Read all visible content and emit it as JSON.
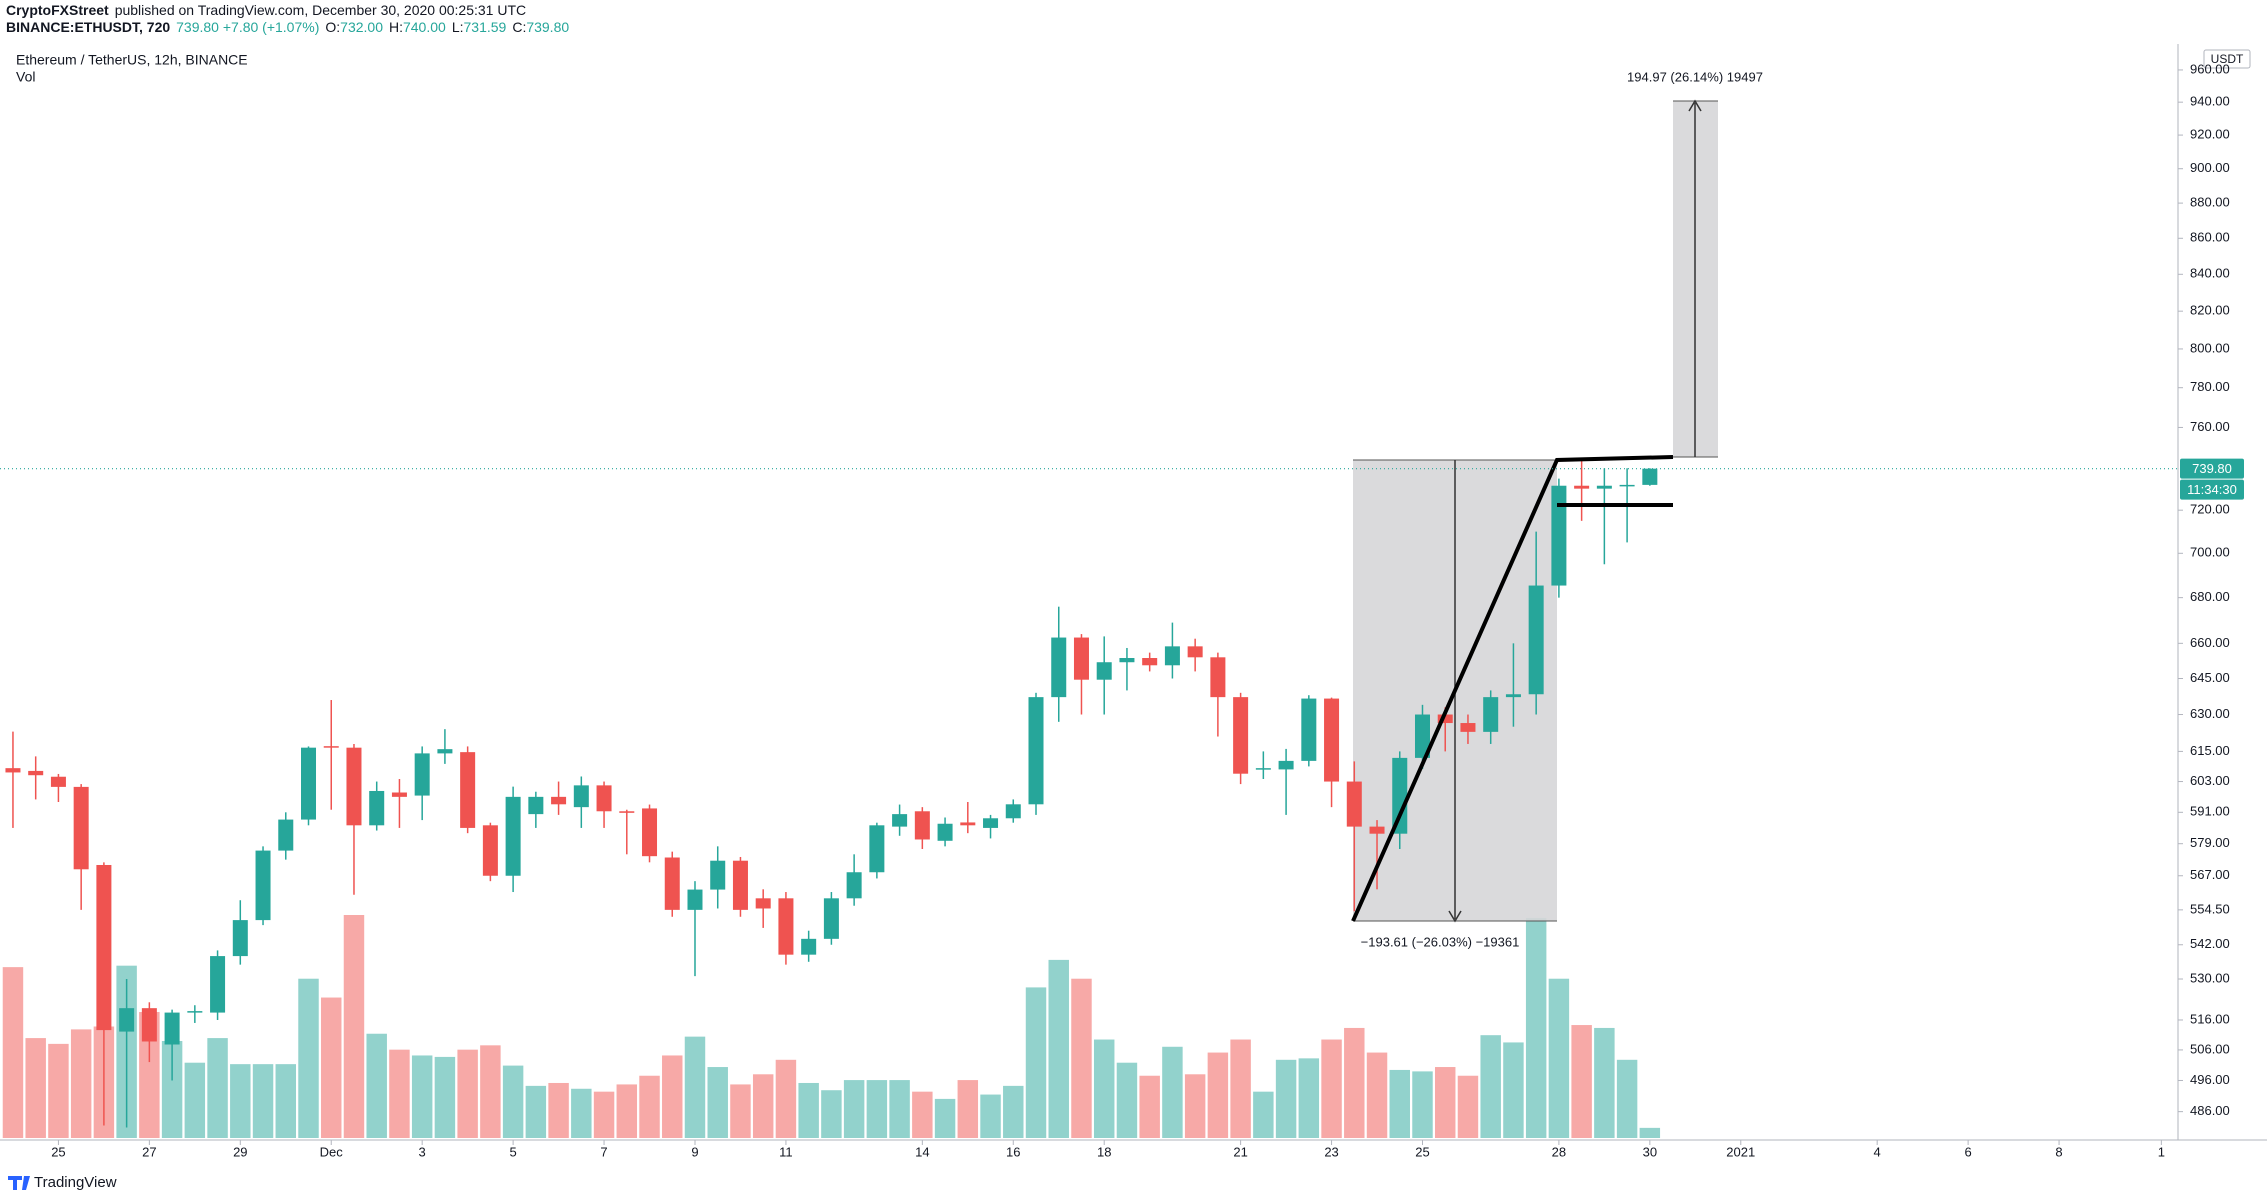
{
  "header": {
    "author": "CryptoFXStreet",
    "published": "published on TradingView.com, December 30, 2020 00:25:31 UTC",
    "symbol": "BINANCE:ETHUSDT, 720",
    "change": "739.80 +7.80 (+1.07%)",
    "ohlc": [
      {
        "key": "O:",
        "value": "732.00"
      },
      {
        "key": "H:",
        "value": "740.00"
      },
      {
        "key": "L:",
        "value": "731.59"
      },
      {
        "key": "C:",
        "value": "739.80"
      }
    ]
  },
  "chart_data": {
    "type": "candlestick",
    "title": "Ethereum / TetherUS, 12h, BINANCE",
    "volume_label": "Vol",
    "y_unit": "USDT",
    "up_color": "#26a69a",
    "down_color": "#ef5350",
    "volume_up_color": "#92d2cc",
    "volume_down_color": "#f7a9a7",
    "log_scale": true,
    "grid": false,
    "open": [
      608.3,
      607.2,
      604.9,
      600.9,
      571.0,
      512.1,
      520.0,
      507.8,
      518.5,
      518.5,
      538.0,
      550.8,
      576.4,
      588.2,
      617.1,
      616.5,
      586.0,
      598.7,
      597.5,
      614.2,
      614.7,
      586.0,
      567.0,
      590.3,
      597.0,
      593.0,
      601.5,
      591.4,
      592.5,
      573.8,
      554.5,
      561.9,
      572.6,
      558.7,
      558.7,
      538.5,
      544.1,
      558.7,
      568.3,
      585.5,
      591.4,
      580.1,
      587.1,
      585.0,
      588.7,
      594.1,
      637.2,
      662.5,
      644.5,
      651.9,
      653.7,
      650.6,
      658.7,
      654.0,
      637.2,
      607.8,
      607.8,
      611.2,
      636.6,
      603.0,
      585.5,
      582.8,
      612.4,
      630.0,
      626.5,
      622.9,
      637.2,
      638.4,
      685.4,
      731.6,
      730.2,
      731.6,
      732.0
    ],
    "high": [
      623,
      613,
      606,
      602,
      572,
      530,
      522,
      519.5,
      521,
      540,
      558,
      578,
      591,
      617,
      636,
      618,
      603,
      604,
      617,
      624,
      617,
      587,
      601,
      599,
      603,
      605,
      603,
      592,
      594,
      576,
      565,
      578,
      574,
      562,
      561,
      547,
      561,
      575,
      587,
      594,
      593,
      589,
      595,
      590,
      596,
      639,
      676,
      664,
      663,
      658,
      656,
      669,
      662,
      656,
      639,
      615,
      616,
      638,
      637,
      611,
      588,
      615,
      634,
      633,
      630,
      640,
      660,
      710,
      735,
      744,
      740,
      740,
      740.0
    ],
    "low": [
      585,
      596,
      595,
      554.5,
      481.6,
      481,
      502,
      496,
      515,
      516,
      535,
      549,
      573,
      586,
      592,
      560,
      584,
      585,
      588,
      610,
      583,
      565,
      561,
      585,
      590,
      585,
      585,
      575,
      572,
      552,
      531,
      555,
      552,
      548,
      535,
      536,
      542,
      556,
      566,
      582,
      577,
      578,
      583,
      581,
      587,
      590,
      627,
      630,
      630,
      640,
      648,
      645,
      648,
      621,
      602,
      604,
      590,
      609,
      593,
      554,
      562,
      577,
      608,
      615,
      618,
      618,
      625,
      630,
      680,
      715,
      695,
      705,
      731.59
    ],
    "close": [
      606.6,
      605.5,
      600.9,
      569.4,
      512.6,
      520.0,
      508.8,
      518.5,
      519.0,
      538.0,
      550.8,
      576.4,
      588.2,
      616.5,
      616.5,
      586.0,
      599.3,
      597.0,
      614.2,
      615.9,
      585.0,
      567.0,
      597.0,
      597.0,
      594.1,
      601.5,
      591.4,
      590.8,
      574.3,
      554.5,
      561.9,
      572.6,
      554.5,
      555.0,
      538.5,
      544.1,
      558.7,
      568.3,
      586.0,
      590.3,
      580.6,
      586.6,
      586.0,
      588.7,
      594.1,
      637.2,
      662.5,
      644.5,
      651.9,
      653.7,
      650.6,
      658.7,
      654.0,
      637.2,
      606.1,
      608.3,
      611.2,
      636.6,
      603.0,
      585.5,
      582.8,
      612.4,
      630.0,
      626.5,
      622.9,
      637.2,
      638.4,
      685.4,
      731.6,
      730.2,
      731.6,
      732.0,
      739.8
    ],
    "volume": [
      118,
      69,
      65,
      75,
      77,
      119,
      87,
      67,
      52,
      69,
      51,
      51,
      51,
      110,
      97,
      154,
      72,
      61,
      57,
      56,
      61,
      64,
      50,
      36,
      38,
      34,
      32,
      37,
      43,
      57,
      70,
      49,
      37,
      44,
      54,
      38,
      33,
      40,
      40,
      40,
      32,
      27,
      40,
      30,
      36,
      104,
      123,
      110,
      68,
      52,
      43,
      63,
      44,
      59,
      68,
      32,
      54,
      55,
      68,
      76,
      59,
      47,
      46,
      49,
      43,
      71,
      66,
      152,
      110,
      78,
      76,
      54,
      7
    ],
    "xlim": [
      -0.57,
      95.1
    ],
    "xticks": [
      {
        "value": 2,
        "label": "25"
      },
      {
        "value": 6,
        "label": "27"
      },
      {
        "value": 10,
        "label": "29"
      },
      {
        "value": 14,
        "label": "Dec"
      },
      {
        "value": 18,
        "label": "3"
      },
      {
        "value": 22,
        "label": "5"
      },
      {
        "value": 26,
        "label": "7"
      },
      {
        "value": 30,
        "label": "9"
      },
      {
        "value": 34,
        "label": "11"
      },
      {
        "value": 40,
        "label": "14"
      },
      {
        "value": 44,
        "label": "16"
      },
      {
        "value": 48,
        "label": "18"
      },
      {
        "value": 54,
        "label": "21"
      },
      {
        "value": 58,
        "label": "23"
      },
      {
        "value": 62,
        "label": "25"
      },
      {
        "value": 68,
        "label": "28"
      },
      {
        "value": 72,
        "label": "30"
      },
      {
        "value": 76,
        "label": "2021"
      },
      {
        "value": 82,
        "label": "4"
      },
      {
        "value": 86,
        "label": "6"
      },
      {
        "value": 90,
        "label": "8"
      },
      {
        "value": 94.5,
        "label": "1"
      }
    ],
    "ylim": [
      477.7,
      972.6
    ],
    "yticks": [
      {
        "value": 960,
        "label": "960.00"
      },
      {
        "value": 940,
        "label": "940.00"
      },
      {
        "value": 920,
        "label": "920.00"
      },
      {
        "value": 900,
        "label": "900.00"
      },
      {
        "value": 880,
        "label": "880.00"
      },
      {
        "value": 860,
        "label": "860.00"
      },
      {
        "value": 840,
        "label": "840.00"
      },
      {
        "value": 820,
        "label": "820.00"
      },
      {
        "value": 800,
        "label": "800.00"
      },
      {
        "value": 780,
        "label": "780.00"
      },
      {
        "value": 760,
        "label": "760.00"
      },
      {
        "value": 720,
        "label": "720.00"
      },
      {
        "value": 700,
        "label": "700.00"
      },
      {
        "value": 680,
        "label": "680.00"
      },
      {
        "value": 660,
        "label": "660.00"
      },
      {
        "value": 645,
        "label": "645.00"
      },
      {
        "value": 630,
        "label": "630.00"
      },
      {
        "value": 615,
        "label": "615.00"
      },
      {
        "value": 603,
        "label": "603.00"
      },
      {
        "value": 591,
        "label": "591.00"
      },
      {
        "value": 579,
        "label": "579.00"
      },
      {
        "value": 567,
        "label": "567.00"
      },
      {
        "value": 554.5,
        "label": "554.50"
      },
      {
        "value": 542,
        "label": "542.00"
      },
      {
        "value": 530,
        "label": "530.00"
      },
      {
        "value": 516,
        "label": "516.00"
      },
      {
        "value": 506,
        "label": "506.00"
      },
      {
        "value": 496,
        "label": "496.00"
      },
      {
        "value": 486,
        "label": "486.00"
      }
    ],
    "last_price": {
      "value": 739.8,
      "label": "739.80"
    },
    "countdown": "11:34:30",
    "annotations": [
      "194.97 (26.14%) 19497",
      "−193.61 (−26.03%) −19361"
    ]
  },
  "footer": {
    "brand": "TradingView"
  }
}
